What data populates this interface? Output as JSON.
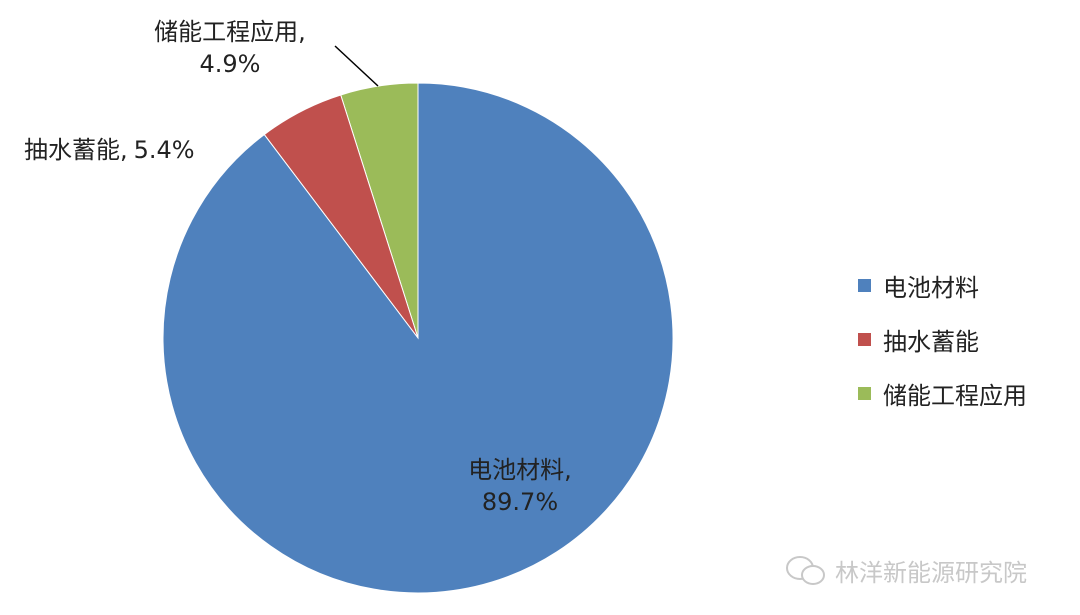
{
  "chart_data": {
    "type": "pie",
    "categories": [
      "电池材料",
      "抽水蓄能",
      "储能工程应用"
    ],
    "values": [
      89.7,
      5.4,
      4.9
    ],
    "unit": "%",
    "colors": [
      "#4F81BD",
      "#C0504D",
      "#9BBB59"
    ],
    "data_labels": [
      {
        "name": "电池材料,",
        "value": "89.7%"
      },
      {
        "name": "抽水蓄能,",
        "value": "5.4%"
      },
      {
        "name": "储能工程应用,",
        "value": "4.9%"
      }
    ],
    "legend": {
      "position": "right",
      "entries": [
        "电池材料",
        "抽水蓄能",
        "储能工程应用"
      ]
    },
    "start_angle": "top",
    "direction": "clockwise"
  },
  "watermark": {
    "text": "林洋新能源研究院",
    "icon": "wechat-icon"
  }
}
